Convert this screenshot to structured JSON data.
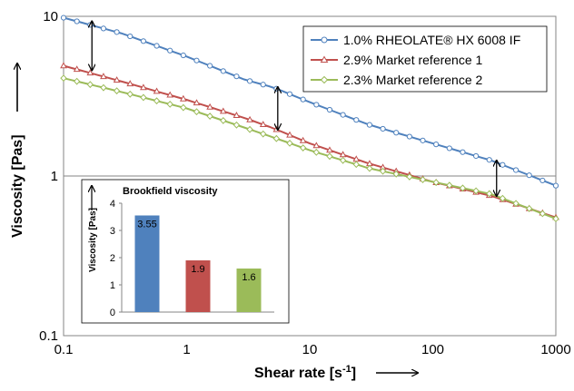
{
  "chart_data": [
    {
      "type": "line",
      "xscale": "log",
      "yscale": "log",
      "xlim": [
        0.1,
        1000
      ],
      "ylim": [
        0.1,
        10
      ],
      "xlabel": "Shear rate [s",
      "xlabel_sup": "-1",
      "xlabel_close": "]",
      "ylabel": "Viscosity [Pas]",
      "x_ticks": [
        "0.1",
        "1",
        "10",
        "100",
        "1000"
      ],
      "y_ticks": [
        "0.1",
        "1",
        "10"
      ],
      "grid": "horizontal",
      "legend_position": "top-right",
      "series": [
        {
          "name": "1.0% RHEOLATE® HX 6008 IF",
          "color": "#4F81BD",
          "marker": "circle",
          "x": [
            0.1,
            0.3,
            1,
            3,
            5,
            10,
            30,
            100,
            300,
            1000
          ],
          "y": [
            9.8,
            7.8,
            5.6,
            4.0,
            3.6,
            2.9,
            2.1,
            1.6,
            1.25,
            0.87
          ]
        },
        {
          "name": "2.9% Market reference 1",
          "color": "#C0504D",
          "marker": "triangle",
          "x": [
            0.1,
            0.3,
            1,
            3,
            5,
            10,
            30,
            100,
            300,
            1000
          ],
          "y": [
            4.9,
            3.9,
            3.0,
            2.3,
            2.0,
            1.6,
            1.2,
            0.92,
            0.75,
            0.55
          ]
        },
        {
          "name": "2.3% Market reference 2",
          "color": "#9BBB59",
          "marker": "diamond",
          "x": [
            0.1,
            0.3,
            1,
            3,
            5,
            10,
            30,
            100,
            300,
            1000
          ],
          "y": [
            4.1,
            3.35,
            2.65,
            2.0,
            1.75,
            1.45,
            1.12,
            0.92,
            0.77,
            0.54
          ]
        }
      ],
      "annotations": [
        {
          "type": "double-arrow",
          "x": 0.17,
          "y_from": 9.3,
          "y_to": 4.6
        },
        {
          "type": "double-arrow",
          "x": 5.5,
          "y_from": 3.6,
          "y_to": 1.95
        },
        {
          "type": "double-arrow",
          "x": 330,
          "y_from": 1.25,
          "y_to": 0.75
        }
      ]
    },
    {
      "type": "bar",
      "title": "Brookfield viscosity",
      "ylabel": "Viscosity [Pas]",
      "ylim": [
        0,
        4
      ],
      "y_ticks": [
        "0",
        "1",
        "2",
        "3",
        "4"
      ],
      "categories": [
        "1.0% RHEOLATE® HX 6008 IF",
        "2.9% Market reference 1",
        "2.3% Market reference 2"
      ],
      "values": [
        3.55,
        1.9,
        1.6
      ],
      "value_labels": [
        "3.55",
        "1.9",
        "1.6"
      ],
      "colors": [
        "#4F81BD",
        "#C0504D",
        "#9BBB59"
      ]
    }
  ]
}
